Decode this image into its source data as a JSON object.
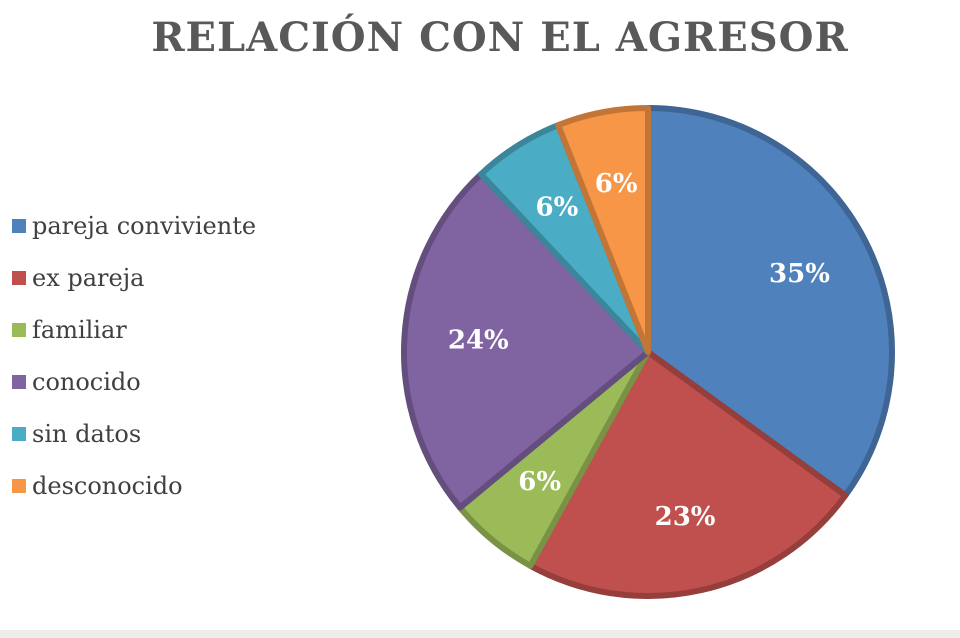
{
  "chart_data": {
    "type": "pie",
    "title": "RELACIÓN CON EL AGRESOR",
    "categories": [
      "pareja conviviente",
      "ex pareja",
      "familiar",
      "conocido",
      "sin datos",
      "desconocido"
    ],
    "values": [
      35,
      23,
      6,
      24,
      6,
      6
    ],
    "value_labels": [
      "35%",
      "23%",
      "6%",
      "24%",
      "6%",
      "6%"
    ],
    "colors": [
      "#4f81bd",
      "#c0504d",
      "#9bbb59",
      "#8064a2",
      "#4bacc6",
      "#f79646"
    ],
    "legend_position": "left",
    "start_angle": "12 o'clock, clockwise"
  }
}
